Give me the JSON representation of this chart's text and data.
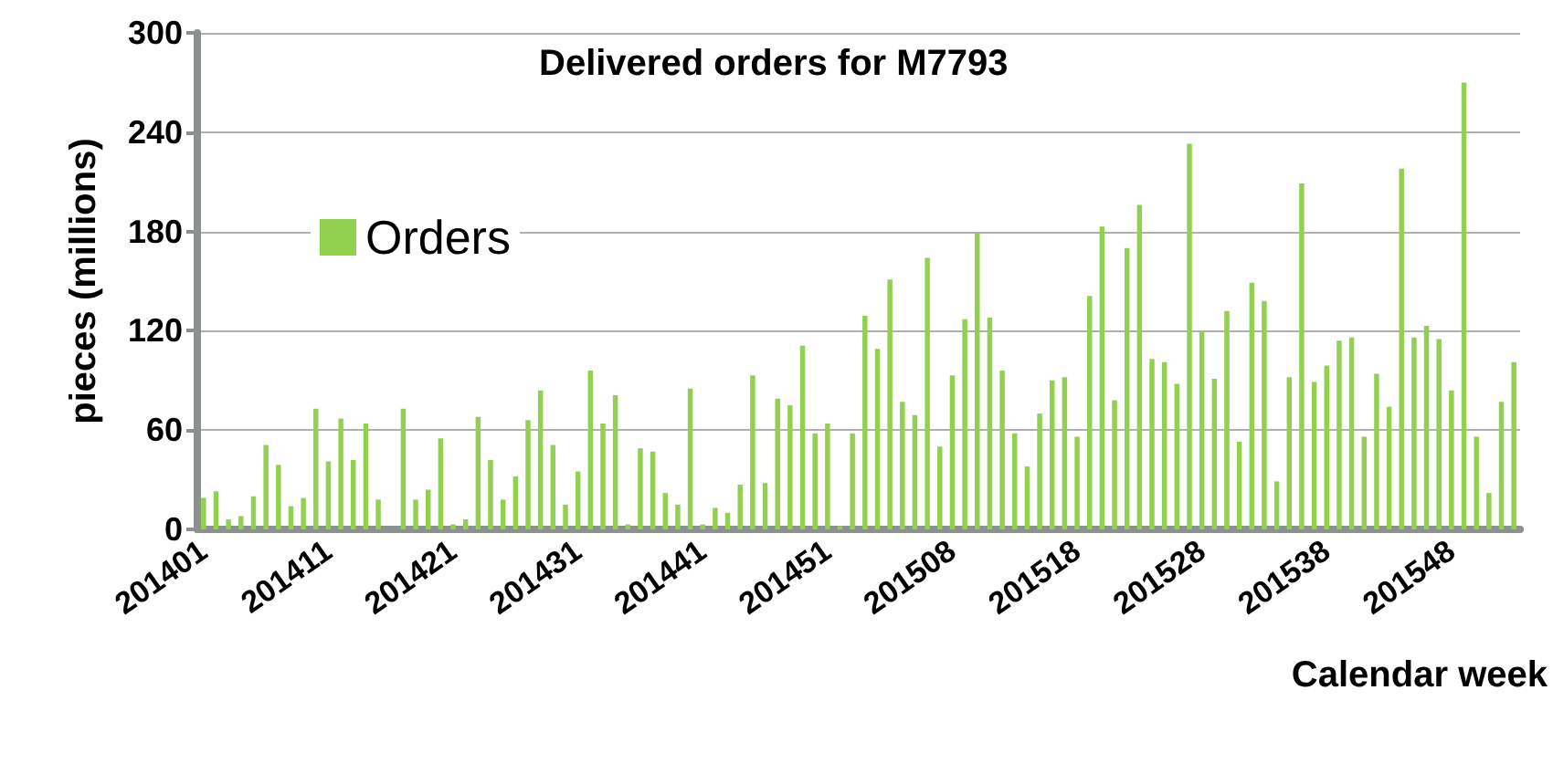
{
  "chart_data": {
    "type": "bar",
    "title": "Delivered orders for M7793",
    "xlabel": "Calendar week",
    "ylabel": "pieces (millions)",
    "categories": [
      "201401",
      null,
      null,
      null,
      null,
      null,
      null,
      null,
      null,
      null,
      "201411",
      null,
      null,
      null,
      null,
      null,
      null,
      null,
      null,
      null,
      "201421",
      null,
      null,
      null,
      null,
      null,
      null,
      null,
      null,
      null,
      "201431",
      null,
      null,
      null,
      null,
      null,
      null,
      null,
      null,
      null,
      "201441",
      null,
      null,
      null,
      null,
      null,
      null,
      null,
      null,
      null,
      "201451",
      null,
      null,
      null,
      null,
      null,
      null,
      null,
      null,
      null,
      "201508",
      null,
      null,
      null,
      null,
      null,
      null,
      null,
      null,
      null,
      "201518",
      null,
      null,
      null,
      null,
      null,
      null,
      null,
      null,
      null,
      "201528",
      null,
      null,
      null,
      null,
      null,
      null,
      null,
      null,
      null,
      "201538",
      null,
      null,
      null,
      null,
      null,
      null,
      null,
      null,
      null,
      "201548",
      null,
      null,
      null,
      null,
      null
    ],
    "series": [
      {
        "name": "Orders",
        "color": "#92d050",
        "values": [
          19,
          23,
          6,
          8,
          20,
          51,
          39,
          14,
          19,
          73,
          41,
          67,
          42,
          64,
          18,
          0,
          73,
          18,
          24,
          55,
          3,
          6,
          68,
          42,
          18,
          32,
          66,
          84,
          51,
          15,
          35,
          96,
          64,
          81,
          3,
          49,
          47,
          22,
          15,
          85,
          3,
          13,
          10,
          27,
          93,
          28,
          79,
          75,
          111,
          58,
          64,
          2,
          58,
          129,
          109,
          151,
          77,
          69,
          164,
          50,
          93,
          127,
          179,
          128,
          96,
          58,
          38,
          70,
          90,
          92,
          56,
          141,
          183,
          78,
          170,
          196,
          103,
          101,
          88,
          233,
          120,
          91,
          132,
          53,
          149,
          138,
          29,
          92,
          209,
          89,
          99,
          114,
          116,
          56,
          94,
          74,
          218,
          116,
          123,
          115,
          84,
          270,
          56,
          22,
          77,
          101
        ]
      }
    ],
    "ylim": [
      0,
      300
    ],
    "yticks": [
      0,
      60,
      120,
      180,
      240,
      300
    ],
    "grid": "y",
    "legend": "left"
  }
}
